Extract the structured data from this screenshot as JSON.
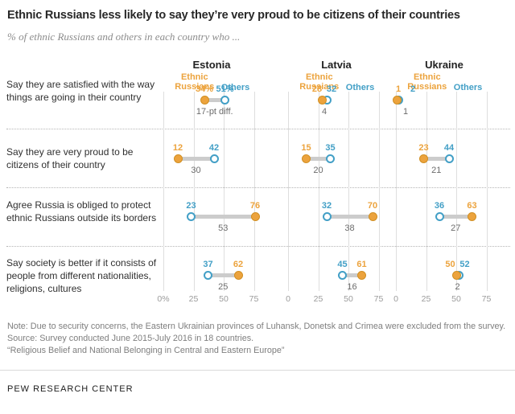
{
  "title": "Ethnic Russians less likely to say they’re very proud to be citizens of their countries",
  "subtitle": "% of ethnic Russians and others in each country who ...",
  "notes": {
    "note": "Note: Due to security concerns, the Eastern Ukrainian provinces of Luhansk, Donetsk and Crimea were excluded from the survey.",
    "source": "Source: Survey conducted June 2015-July 2016 in 18 countries.",
    "report": "“Religious Belief and National Belonging in Central and Eastern Europe”"
  },
  "footer": "PEW RESEARCH CENTER",
  "chart_data": {
    "type": "dumbbell",
    "unit": "percent",
    "x_ticks": [
      0,
      25,
      50,
      75
    ],
    "xlim": [
      0,
      80
    ],
    "grid": true,
    "series_names": [
      "Ethnic Russians",
      "Others"
    ],
    "colors": {
      "ethnic_russians": "#ECA33D",
      "ethnic_russians_border": "#D18F22",
      "others": "#429FC6",
      "connector": "#CCCCCC"
    },
    "row_labels": [
      "Say they are satisfied with the way things are going in their country",
      "Say they are very proud to be citizens of their country",
      "Agree Russia is obliged to protect ethnic Russians outside its borders",
      "Say society is better if it consists of people from different nationalities, religions, cultures"
    ],
    "countries": [
      {
        "name": "Estonia",
        "axis_labels": [
          "0%",
          "25",
          "50",
          "75"
        ],
        "points": [
          {
            "ethnic_russians": 34,
            "others": 51,
            "er_label": "34%",
            "others_label": "51%",
            "diff": "17-pt diff."
          },
          {
            "ethnic_russians": 12,
            "others": 42,
            "diff": "30"
          },
          {
            "ethnic_russians": 76,
            "others": 23,
            "diff": "53"
          },
          {
            "ethnic_russians": 62,
            "others": 37,
            "diff": "25"
          }
        ]
      },
      {
        "name": "Latvia",
        "axis_labels": [
          "0",
          "25",
          "50",
          "75"
        ],
        "points": [
          {
            "ethnic_russians": 28,
            "others": 32,
            "diff": "4"
          },
          {
            "ethnic_russians": 15,
            "others": 35,
            "diff": "20"
          },
          {
            "ethnic_russians": 70,
            "others": 32,
            "diff": "38"
          },
          {
            "ethnic_russians": 61,
            "others": 45,
            "diff": "16"
          }
        ]
      },
      {
        "name": "Ukraine",
        "axis_labels": [
          "0",
          "25",
          "50",
          "75"
        ],
        "points": [
          {
            "ethnic_russians": 1,
            "others": 2,
            "diff": "1"
          },
          {
            "ethnic_russians": 23,
            "others": 44,
            "diff": "21"
          },
          {
            "ethnic_russians": 63,
            "others": 36,
            "diff": "27"
          },
          {
            "ethnic_russians": 50,
            "others": 52,
            "diff": "2"
          }
        ]
      }
    ]
  }
}
